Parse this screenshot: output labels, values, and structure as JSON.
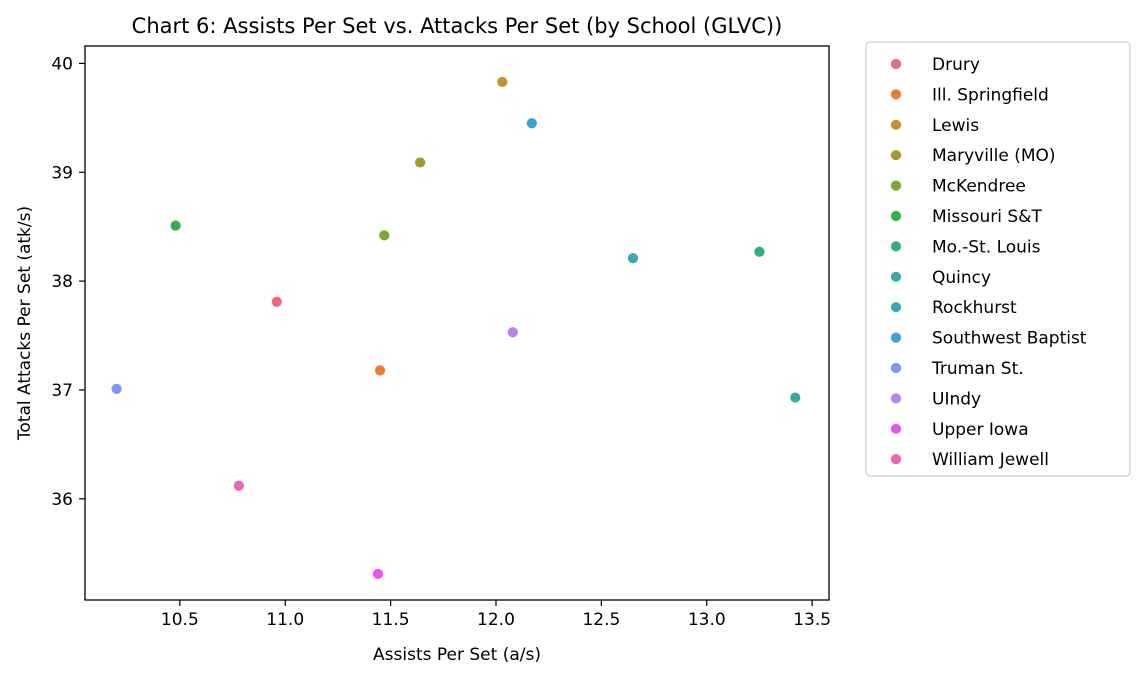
{
  "chart_data": {
    "type": "scatter",
    "title": "Chart 6: Assists Per Set vs. Attacks Per Set (by School (GLVC))",
    "xlabel": "Assists Per Set (a/s)",
    "ylabel": "Total Attacks Per Set (atk/s)",
    "xlim": [
      10.05,
      13.58
    ],
    "ylim": [
      35.07,
      40.16
    ],
    "xticks": [
      10.5,
      11.0,
      11.5,
      12.0,
      12.5,
      13.0,
      13.5
    ],
    "yticks": [
      36,
      37,
      38,
      39,
      40
    ],
    "grid": false,
    "legend_position": "outside-right",
    "series": [
      {
        "name": "Drury",
        "color": "#f0697a",
        "x": 10.96,
        "y": 37.81
      },
      {
        "name": "Ill. Springfield",
        "color": "#ee7a2f",
        "x": 11.45,
        "y": 37.18
      },
      {
        "name": "Lewis",
        "color": "#c98e30",
        "x": 12.03,
        "y": 39.83
      },
      {
        "name": "Maryville (MO)",
        "color": "#a49b2f",
        "x": 11.64,
        "y": 39.09
      },
      {
        "name": "McKendree",
        "color": "#7ea832",
        "x": 11.47,
        "y": 38.42
      },
      {
        "name": "Missouri S&T",
        "color": "#33b049",
        "x": 10.48,
        "y": 38.51
      },
      {
        "name": "Mo.-St. Louis",
        "color": "#35ad82",
        "x": 13.25,
        "y": 38.27
      },
      {
        "name": "Quincy",
        "color": "#36aba0",
        "x": 13.42,
        "y": 36.93
      },
      {
        "name": "Rockhurst",
        "color": "#38a9b8",
        "x": 12.65,
        "y": 38.21
      },
      {
        "name": "Southwest Baptist",
        "color": "#3ba3d8",
        "x": 12.17,
        "y": 39.45
      },
      {
        "name": "Truman St.",
        "color": "#7f97f4",
        "x": 10.2,
        "y": 37.01
      },
      {
        "name": "UIndy",
        "color": "#bb81f4",
        "x": 12.08,
        "y": 37.53
      },
      {
        "name": "Upper Iowa",
        "color": "#ec53ee",
        "x": 11.44,
        "y": 35.31
      },
      {
        "name": "William Jewell",
        "color": "#f061b8",
        "x": 10.78,
        "y": 36.12
      }
    ]
  }
}
